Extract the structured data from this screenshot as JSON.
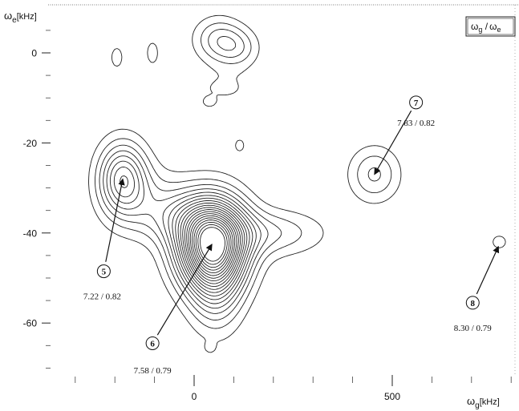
{
  "chart_data": {
    "type": "contour",
    "title": "",
    "legend_label": {
      "g": "ω",
      "g_sub": "g",
      "sep": " /",
      "e": "ω",
      "e_sub": "e"
    },
    "xlabel": {
      "sym": "ω",
      "sub": "g",
      "unit": "[kHz]"
    },
    "ylabel": {
      "sym": "ω",
      "sub": "e",
      "unit": "[kHz]"
    },
    "xlim": [
      -300,
      820
    ],
    "ylim": [
      -72,
      10
    ],
    "x_ticks_labeled": [
      0,
      500
    ],
    "x_tick_labels": [
      "0",
      "500"
    ],
    "y_ticks_labeled": [
      0,
      -20,
      -40,
      -60
    ],
    "y_tick_labels": [
      "0",
      "-20",
      "-40",
      "-60"
    ],
    "x_minor_ticks": [
      -300,
      -200,
      -100,
      100,
      200,
      300,
      400,
      600,
      700,
      800
    ],
    "y_minor_ticks": [
      5,
      -5,
      -10,
      -15,
      -25,
      -30,
      -35,
      -45,
      -50,
      -55,
      -65,
      -70
    ],
    "grid": false,
    "contour_levels": [
      1,
      2,
      3,
      4,
      5,
      6,
      7,
      8,
      9,
      10,
      11,
      12,
      13,
      14,
      15,
      16,
      17,
      18,
      19,
      20
    ],
    "peaks": [
      {
        "id": "p0a",
        "x": 60,
        "y": 3,
        "sx": 42,
        "sy": 3.4,
        "amp": 3.2
      },
      {
        "id": "p0b",
        "x": 110,
        "y": 1,
        "sx": 38,
        "sy": 3,
        "amp": 2.4
      },
      {
        "id": "p0c",
        "x": -195,
        "y": -1,
        "sx": 14,
        "sy": 2.2,
        "amp": 1.5
      },
      {
        "id": "p0d",
        "x": -105,
        "y": 0,
        "sx": 14,
        "sy": 2.4,
        "amp": 1.5
      },
      {
        "id": "p0e",
        "x": 75,
        "y": -8,
        "sx": 70,
        "sy": 3,
        "amp": 1.1
      },
      {
        "id": "p5",
        "x": -180,
        "y": -28,
        "sx": 42,
        "sy": 5.5,
        "amp": 7.5
      },
      {
        "id": "p5b",
        "x": -100,
        "y": -33,
        "sx": 70,
        "sy": 5,
        "amp": 2.0
      },
      {
        "id": "p6",
        "x": 45,
        "y": -42.5,
        "sx": 58,
        "sy": 6.5,
        "amp": 20
      },
      {
        "id": "p6b",
        "x": 55,
        "y": -52,
        "sx": 45,
        "sy": 7,
        "amp": 4.0
      },
      {
        "id": "p6c",
        "x": 185,
        "y": -40,
        "sx": 95,
        "sy": 3.5,
        "amp": 3.0
      },
      {
        "id": "p6d",
        "x": -30,
        "y": -37,
        "sx": 75,
        "sy": 4,
        "amp": 2.5
      },
      {
        "id": "p7",
        "x": 455,
        "y": -27,
        "sx": 44,
        "sy": 4.2,
        "amp": 3.2
      },
      {
        "id": "p8",
        "x": 770,
        "y": -42,
        "sx": 22,
        "sy": 1.8,
        "amp": 1.3
      },
      {
        "id": "pminor1",
        "x": 115,
        "y": -20.5,
        "sx": 16,
        "sy": 1.8,
        "amp": 1.2
      },
      {
        "id": "pminor2",
        "x": 40,
        "y": -65.5,
        "sx": 10,
        "sy": 0.9,
        "amp": 1.05
      },
      {
        "id": "pminor3",
        "x": 38,
        "y": -11,
        "sx": 12,
        "sy": 0.8,
        "amp": 1.05
      },
      {
        "id": "pminor4",
        "x": 380,
        "y": 0,
        "sx": 6,
        "sy": 1.6,
        "amp": 1.1
      }
    ],
    "annotations": [
      {
        "id": "5",
        "label": "5",
        "value": "7.22 / 0.82",
        "target": [
          -180,
          -28
        ],
        "circle": [
          -228,
          -48.5
        ],
        "text": [
          -232,
          -54
        ]
      },
      {
        "id": "6",
        "label": "6",
        "value": "7.58 / 0.79",
        "target": [
          45,
          -42.5
        ],
        "circle": [
          -105,
          -64.5
        ],
        "text": [
          -105,
          -70.5
        ]
      },
      {
        "id": "7",
        "label": "7",
        "value": "7.83 / 0.82",
        "target": [
          455,
          -27
        ],
        "circle": [
          560,
          -11
        ],
        "text": [
          560,
          -15.5
        ]
      },
      {
        "id": "8",
        "label": "8",
        "value": "8.30 / 0.79",
        "target": [
          768,
          -43
        ],
        "circle": [
          703,
          -55.5
        ],
        "text": [
          703,
          -61
        ]
      }
    ]
  }
}
